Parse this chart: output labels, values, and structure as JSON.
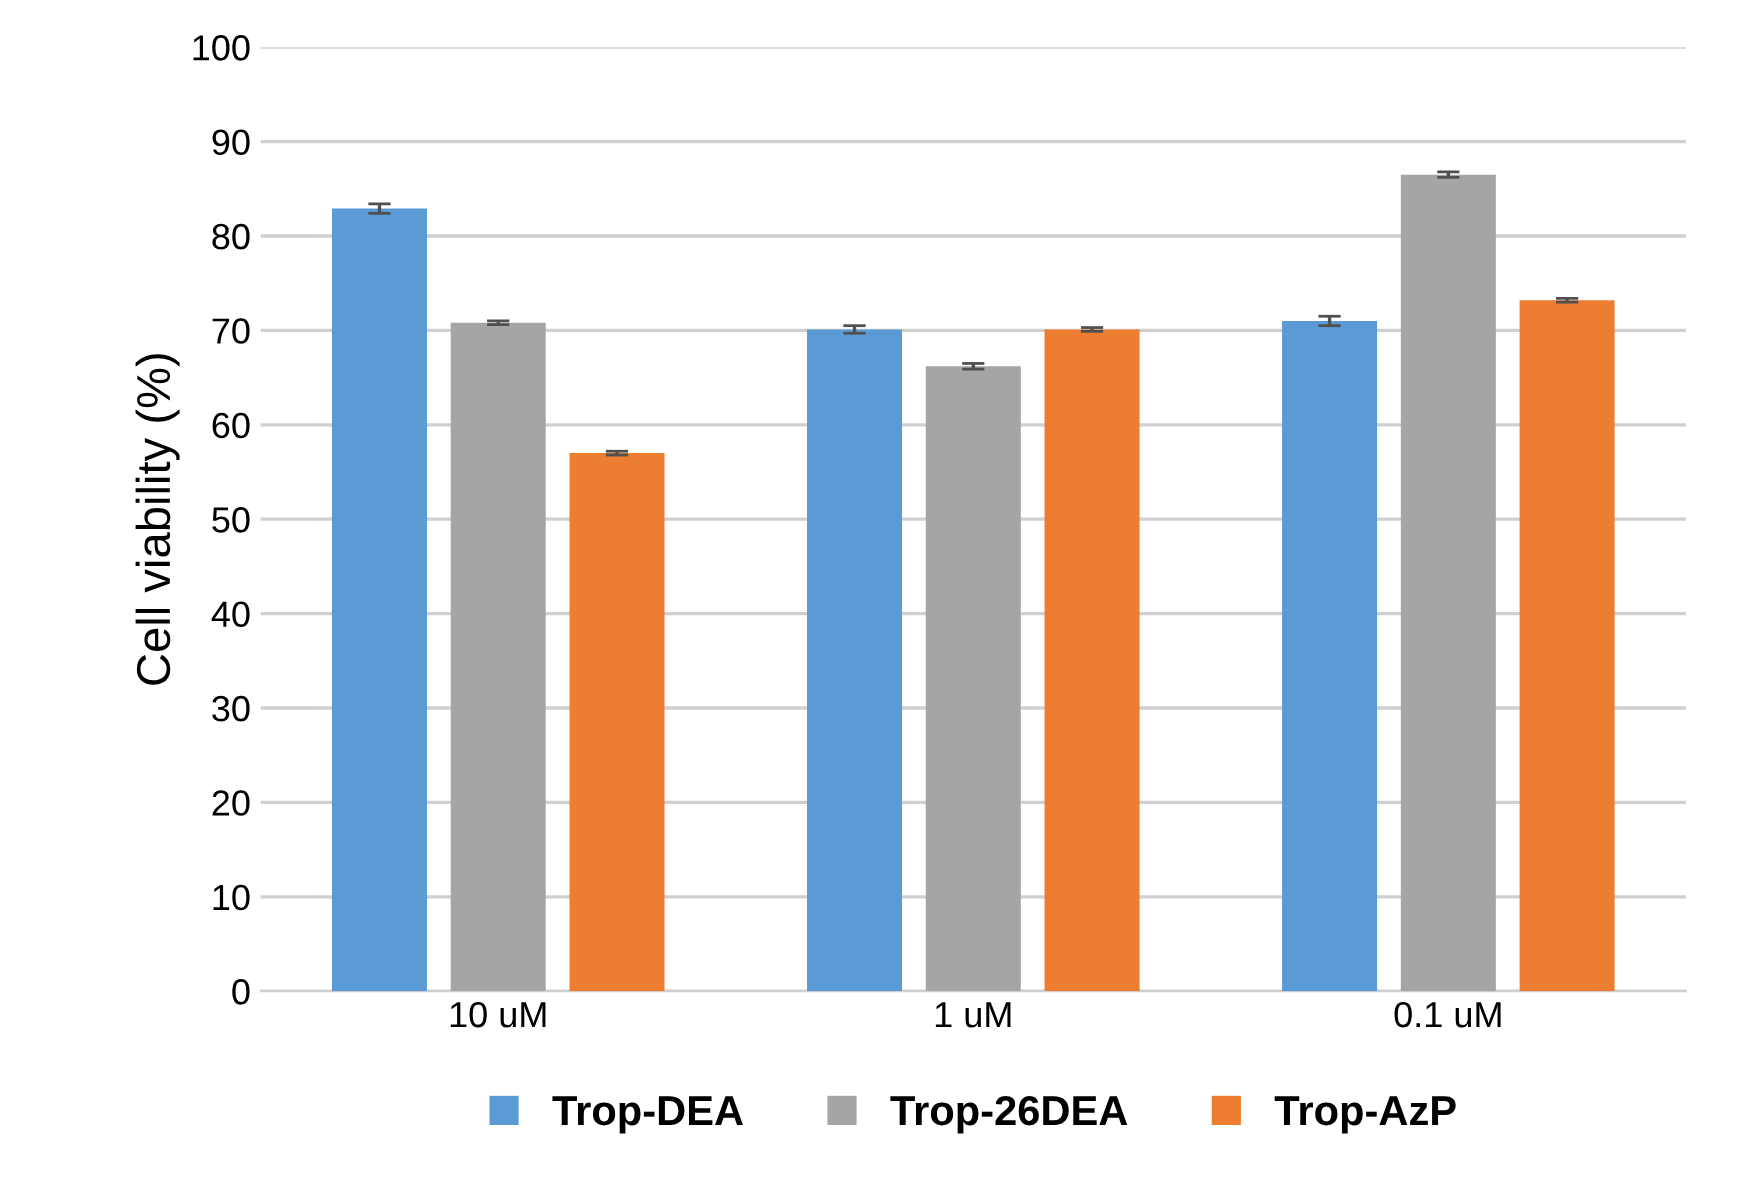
{
  "chart_data": {
    "type": "bar",
    "ylabel": "Cell viability (%)",
    "categories": [
      "10 uM",
      "1 uM",
      "0.1 uM"
    ],
    "series": [
      {
        "name": "Trop-DEA",
        "color": "#5b9bd5",
        "values": [
          82.9,
          70.1,
          71.0
        ],
        "errors": [
          0.5,
          0.4,
          0.5
        ]
      },
      {
        "name": "Trop-26DEA",
        "color": "#a5a5a5",
        "values": [
          70.8,
          66.2,
          86.5
        ],
        "errors": [
          0.2,
          0.3,
          0.3
        ]
      },
      {
        "name": "Trop-AzP",
        "color": "#ed7d31",
        "values": [
          57.0,
          70.1,
          73.2
        ],
        "errors": [
          0.2,
          0.2,
          0.2
        ]
      }
    ],
    "ylim": [
      0,
      100
    ],
    "yticks": [
      0,
      10,
      20,
      30,
      40,
      50,
      60,
      70,
      80,
      90,
      100
    ],
    "grid": "y",
    "legend": "bottom"
  }
}
